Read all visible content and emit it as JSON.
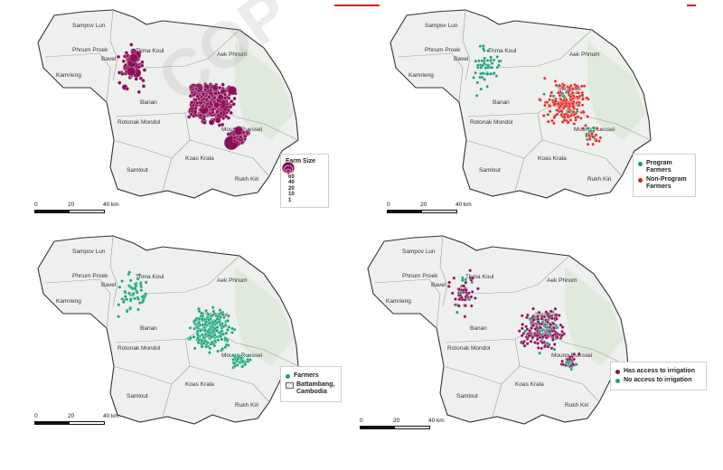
{
  "watermark": "COP",
  "colors": {
    "header_rule": "#e0141b",
    "farm_size": "#8b0e57",
    "program": "#149a77",
    "non_program": "#e2211b",
    "farmers": "#1aa37c",
    "has_irrigation": "#8b0e57",
    "no_irrigation": "#1aa37c"
  },
  "place_names": {
    "sampov_lun": "Sampov Lun",
    "phnum_proek": "Phnum Proek",
    "kamrieng": "Kamrieng",
    "bavel": "Bavel",
    "thma_koul": "Thma Koul",
    "aek_phnum": "Aek Phnum",
    "sangkae": "Sangkae",
    "banan": "Banan",
    "moung_ruessei": "Moung Ruessei",
    "rotonak_mondol": "Rotonak Mondol",
    "koas_krala": "Koas Krala",
    "samlout": "Samlout",
    "rukh_kiri": "Rukh Kiri"
  },
  "scale_labels": [
    "0",
    "20",
    "40 km"
  ],
  "panels": [
    {
      "id": "farm-size",
      "legend": {
        "title": "Farm Size",
        "sizes": [
          "80",
          "60",
          "40",
          "20",
          "10",
          "1"
        ]
      }
    },
    {
      "id": "program",
      "legend": {
        "items": [
          {
            "label": "Program Farmers",
            "color_key": "program"
          },
          {
            "label": "Non-Program Farmers",
            "color_key": "non_program"
          }
        ]
      }
    },
    {
      "id": "farmers",
      "legend": {
        "items": [
          {
            "label": "Farmers",
            "color_key": "farmers"
          },
          {
            "label": "Battambang, Cambodia",
            "color_key": "boundary"
          }
        ]
      }
    },
    {
      "id": "irrigation",
      "legend": {
        "items": [
          {
            "label": "Has access to irrigation",
            "color_key": "has_irrigation"
          },
          {
            "label": "No access to irrigation",
            "color_key": "no_irrigation"
          }
        ]
      }
    }
  ]
}
